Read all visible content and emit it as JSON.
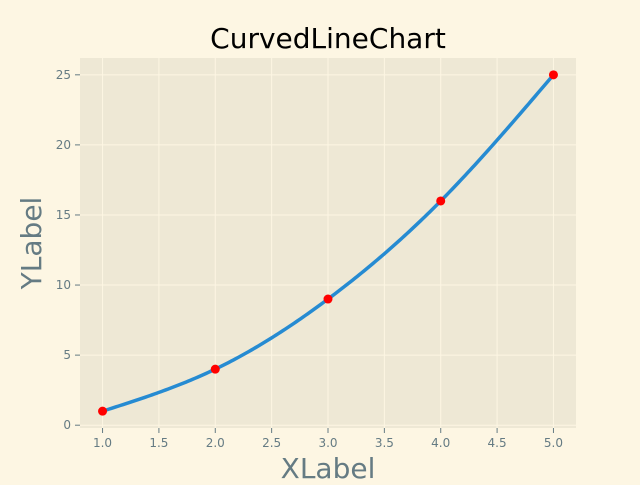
{
  "chart_data": {
    "type": "line",
    "title": "CurvedLineChart",
    "xlabel": "XLabel",
    "ylabel": "YLabel",
    "x": [
      1,
      2,
      3,
      4,
      5
    ],
    "series": [
      {
        "values": [
          1,
          4,
          9,
          16,
          25
        ],
        "line_color": "#268bd2",
        "marker_color": "#ff0000"
      }
    ],
    "xlim": [
      0.8,
      5.2
    ],
    "ylim": [
      -0.2,
      26.2
    ],
    "xticks": [
      "1.0",
      "1.5",
      "2.0",
      "2.5",
      "3.0",
      "3.5",
      "4.0",
      "4.5",
      "5.0"
    ],
    "yticks": [
      "0",
      "5",
      "10",
      "15",
      "20",
      "25"
    ],
    "grid": true,
    "smooth": true,
    "background": "#fdf6e3",
    "plot_background": "#eee8d5",
    "grid_color": "#fdf6e3",
    "tick_label_color": "#657b83",
    "axis_label_color": "#657b83",
    "title_color": "#000000"
  }
}
